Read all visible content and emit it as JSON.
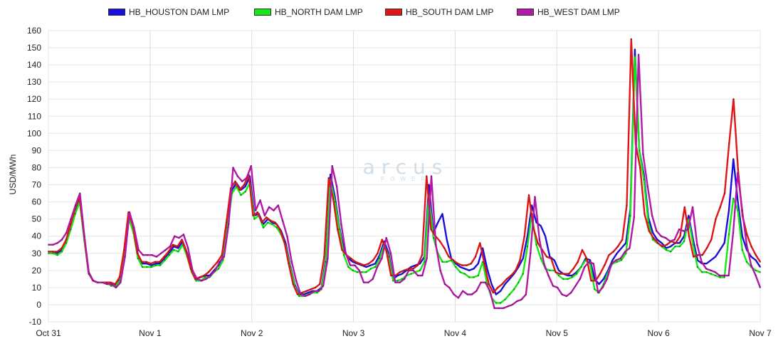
{
  "watermark": {
    "logo": "arcus",
    "sub": "POWER"
  },
  "chart_data": {
    "type": "line",
    "title": "",
    "xlabel": "",
    "ylabel": "USD/MWh",
    "ylim": [
      -10,
      160
    ],
    "yticks": [
      -10,
      0,
      10,
      20,
      30,
      40,
      50,
      60,
      70,
      80,
      90,
      100,
      110,
      120,
      130,
      140,
      150,
      160
    ],
    "x_tick_labels": [
      "Oct 31",
      "Nov 1",
      "Nov 2",
      "Nov 3",
      "Nov 4",
      "Nov 5",
      "Nov 6",
      "Nov 7"
    ],
    "x_unit": "hour",
    "xlim": [
      0,
      168
    ],
    "grid": true,
    "legend_position": "top",
    "colors": {
      "houston": "#1a0de0",
      "north": "#16e816",
      "south": "#e01616",
      "west": "#b517a8"
    },
    "series": [
      {
        "name": "HB_HOUSTON DAM LMP",
        "values": [
          31,
          31,
          30,
          32,
          37,
          46,
          55,
          62,
          40,
          19,
          14,
          13,
          13,
          13,
          12,
          11,
          15,
          30,
          52,
          44,
          29,
          24,
          24,
          23,
          24,
          24,
          27,
          30,
          34,
          33,
          37,
          30,
          20,
          15,
          16,
          17,
          17,
          20,
          23,
          28,
          47,
          67,
          71,
          67,
          69,
          75,
          52,
          53,
          47,
          50,
          48,
          47,
          43,
          36,
          23,
          12,
          6,
          6,
          7,
          8,
          8,
          10,
          27,
          76,
          63,
          45,
          32,
          27,
          25,
          24,
          23,
          22,
          23,
          24,
          29,
          37,
          30,
          15,
          17,
          18,
          20,
          22,
          23,
          24,
          28,
          70,
          42,
          48,
          53,
          38,
          27,
          24,
          22,
          21,
          20,
          21,
          24,
          33,
          21,
          12,
          6,
          8,
          12,
          15,
          18,
          22,
          27,
          40,
          58,
          48,
          46,
          40,
          28,
          26,
          20,
          18,
          17,
          17,
          19,
          22,
          27,
          26,
          15,
          12,
          15,
          20,
          26,
          30,
          33,
          36,
          56,
          149,
          90,
          76,
          51,
          42,
          38,
          36,
          33,
          34,
          36,
          36,
          40,
          52,
          38,
          26,
          24,
          24,
          26,
          28,
          32,
          36,
          55,
          85,
          60,
          40,
          32,
          28,
          26,
          22
        ]
      },
      {
        "name": "HB_NORTH DAM LMP",
        "values": [
          30,
          30,
          29,
          31,
          36,
          44,
          53,
          60,
          38,
          18,
          14,
          13,
          13,
          13,
          11,
          11,
          14,
          28,
          50,
          42,
          27,
          22,
          22,
          22,
          23,
          23,
          26,
          29,
          32,
          31,
          35,
          28,
          19,
          14,
          14,
          16,
          16,
          19,
          21,
          26,
          45,
          65,
          69,
          64,
          66,
          71,
          50,
          52,
          45,
          48,
          47,
          45,
          41,
          34,
          22,
          11,
          5,
          5,
          6,
          7,
          7,
          9,
          25,
          73,
          60,
          44,
          29,
          22,
          20,
          19,
          19,
          19,
          21,
          22,
          27,
          35,
          28,
          14,
          14,
          15,
          17,
          18,
          19,
          20,
          25,
          64,
          39,
          30,
          25,
          25,
          26,
          22,
          19,
          18,
          16,
          16,
          17,
          25,
          12,
          4,
          1,
          1,
          3,
          6,
          9,
          13,
          18,
          34,
          53,
          35,
          27,
          21,
          20,
          20,
          17,
          15,
          15,
          16,
          18,
          22,
          26,
          24,
          9,
          7,
          12,
          19,
          24,
          25,
          26,
          30,
          52,
          145,
          90,
          73,
          48,
          38,
          36,
          34,
          32,
          31,
          34,
          34,
          37,
          50,
          35,
          22,
          19,
          19,
          18,
          17,
          16,
          16,
          41,
          62,
          55,
          32,
          25,
          22,
          20,
          19
        ]
      },
      {
        "name": "HB_SOUTH DAM LMP",
        "values": [
          31,
          31,
          31,
          33,
          38,
          47,
          56,
          63,
          41,
          19,
          14,
          13,
          13,
          13,
          13,
          12,
          16,
          32,
          54,
          46,
          30,
          25,
          25,
          24,
          25,
          25,
          28,
          31,
          35,
          34,
          38,
          31,
          21,
          15,
          16,
          17,
          19,
          22,
          25,
          29,
          48,
          68,
          72,
          67,
          70,
          76,
          52,
          54,
          48,
          51,
          49,
          48,
          44,
          37,
          24,
          12,
          6,
          7,
          8,
          9,
          10,
          12,
          28,
          74,
          62,
          44,
          32,
          29,
          27,
          25,
          24,
          23,
          24,
          26,
          30,
          38,
          31,
          17,
          17,
          19,
          20,
          21,
          21,
          23,
          29,
          75,
          44,
          40,
          37,
          33,
          28,
          26,
          24,
          23,
          23,
          24,
          28,
          36,
          24,
          12,
          7,
          10,
          12,
          15,
          17,
          20,
          26,
          40,
          64,
          45,
          36,
          32,
          28,
          27,
          19,
          18,
          18,
          18,
          21,
          25,
          32,
          27,
          14,
          14,
          18,
          23,
          29,
          31,
          34,
          38,
          58,
          155,
          94,
          80,
          53,
          43,
          39,
          36,
          34,
          35,
          37,
          36,
          40,
          57,
          40,
          28,
          29,
          29,
          33,
          38,
          50,
          57,
          65,
          94,
          120,
          79,
          52,
          41,
          34,
          29,
          25
        ]
      },
      {
        "name": "HB_WEST DAM LMP",
        "values": [
          35,
          35,
          36,
          38,
          42,
          50,
          58,
          65,
          40,
          18,
          14,
          13,
          13,
          12,
          12,
          10,
          13,
          28,
          54,
          45,
          32,
          29,
          29,
          29,
          28,
          30,
          32,
          34,
          40,
          39,
          41,
          33,
          20,
          15,
          14,
          15,
          17,
          20,
          25,
          28,
          47,
          80,
          75,
          72,
          74,
          81,
          55,
          61,
          52,
          57,
          55,
          58,
          49,
          40,
          25,
          14,
          6,
          5,
          6,
          8,
          8,
          11,
          27,
          81,
          69,
          47,
          30,
          23,
          23,
          20,
          13,
          13,
          15,
          22,
          27,
          39,
          30,
          13,
          13,
          15,
          20,
          20,
          17,
          17,
          27,
          75,
          35,
          20,
          12,
          10,
          6,
          4,
          8,
          6,
          6,
          8,
          13,
          13,
          8,
          -2,
          -2,
          -2,
          -1,
          0,
          2,
          3,
          6,
          30,
          63,
          38,
          24,
          17,
          11,
          10,
          6,
          5,
          7,
          11,
          15,
          22,
          25,
          24,
          7,
          10,
          15,
          24,
          26,
          27,
          31,
          33,
          51,
          146,
          88,
          69,
          52,
          43,
          40,
          39,
          37,
          38,
          44,
          43,
          44,
          57,
          35,
          25,
          21,
          20,
          19,
          17,
          17,
          17,
          42,
          77,
          55,
          35,
          23,
          17,
          10
        ]
      }
    ]
  }
}
